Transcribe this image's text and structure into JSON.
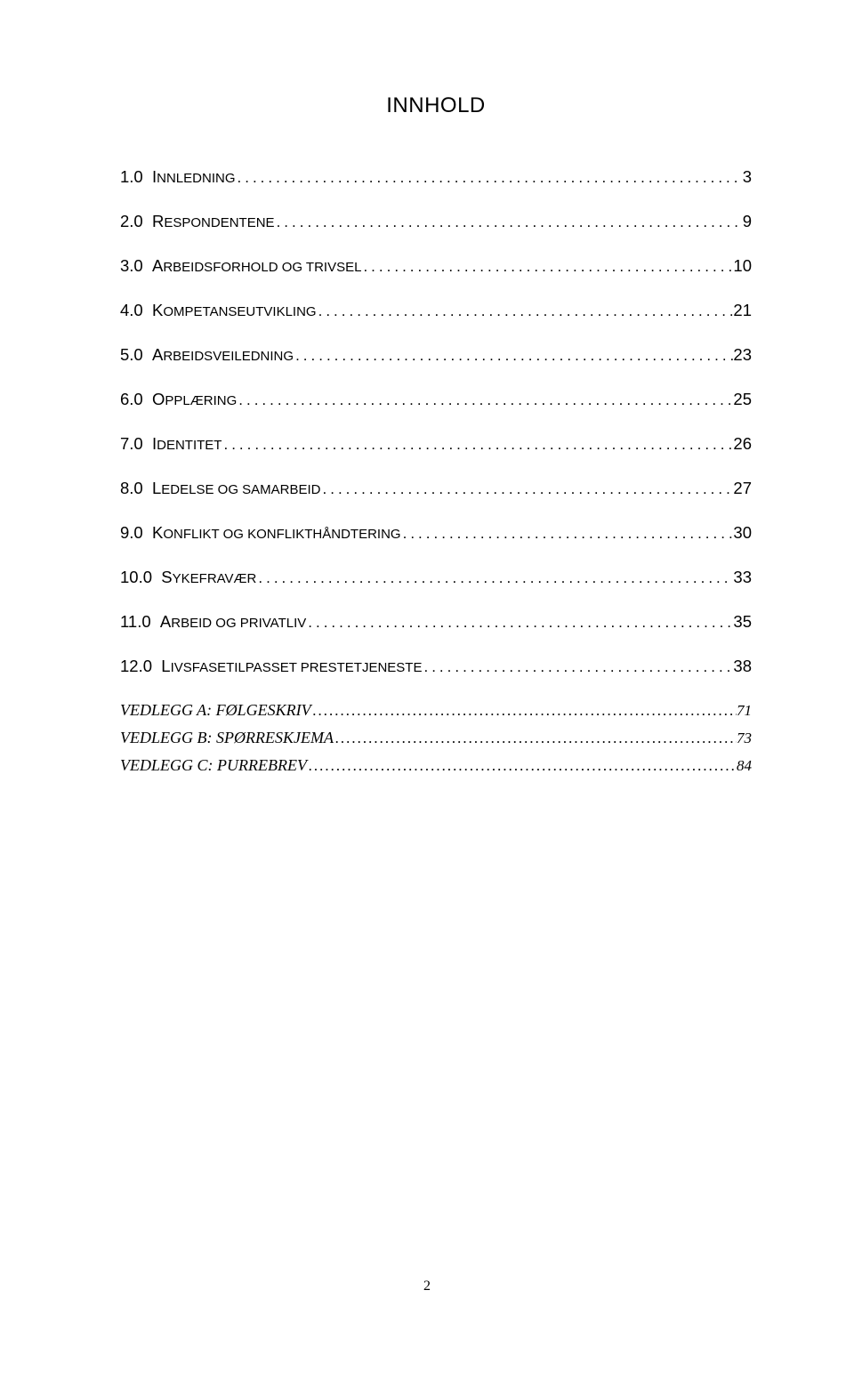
{
  "title": "INNHOLD",
  "entries": [
    {
      "number": "1.0",
      "labelFirst": "I",
      "labelRest": "NNLEDNING",
      "page": "3",
      "smallCaps": true
    },
    {
      "number": "2.0",
      "labelFirst": "R",
      "labelRest": "ESPONDENTENE",
      "page": "9",
      "smallCaps": true
    },
    {
      "number": "3.0",
      "labelFirst": "A",
      "labelRest": "RBEIDSFORHOLD OG TRIVSEL",
      "page": "10",
      "smallCaps": true
    },
    {
      "number": "4.0",
      "labelFirst": "K",
      "labelRest": "OMPETANSEUTVIKLING",
      "page": "21",
      "smallCaps": true
    },
    {
      "number": "5.0",
      "labelFirst": "A",
      "labelRest": "RBEIDSVEILEDNING",
      "page": "23",
      "smallCaps": true
    },
    {
      "number": "6.0",
      "labelFirst": "O",
      "labelRest": "PPLÆRING",
      "page": "25",
      "smallCaps": true
    },
    {
      "number": "7.0",
      "labelFirst": "I",
      "labelRest": "DENTITET",
      "page": "26",
      "smallCaps": true
    },
    {
      "number": "8.0",
      "labelFirst": "L",
      "labelRest": "EDELSE OG SAMARBEID",
      "page": "27",
      "smallCaps": true
    },
    {
      "number": "9.0",
      "labelFirst": "K",
      "labelRest": "ONFLIKT OG KONFLIKTHÅNDTERING",
      "page": "30",
      "smallCaps": true
    },
    {
      "number": "10.0",
      "labelFirst": "S",
      "labelRest": "YKEFRAVÆR",
      "page": "33",
      "smallCaps": true
    },
    {
      "number": "11.0",
      "labelFirst": "A",
      "labelRest": "RBEID OG PRIVATLIV",
      "page": "35",
      "smallCaps": true
    },
    {
      "number": "12.0",
      "labelFirst": "L",
      "labelRest": "IVSFASETILPASSET PRESTETJENESTE",
      "page": "38",
      "smallCaps": true
    },
    {
      "number": "",
      "labelFull": "VEDLEGG A: FØLGESKRIV",
      "page": "71",
      "italic": true
    },
    {
      "number": "",
      "labelFull": "VEDLEGG B: SPØRRESKJEMA",
      "page": "73",
      "italic": true
    },
    {
      "number": "",
      "labelFull": "VEDLEGG C: PURREBREV",
      "page": "84",
      "italic": true
    }
  ],
  "pageNumber": "2",
  "dotsFill": "...................................................................................................................",
  "dotsFillItalic": "........................................................................................................................................"
}
